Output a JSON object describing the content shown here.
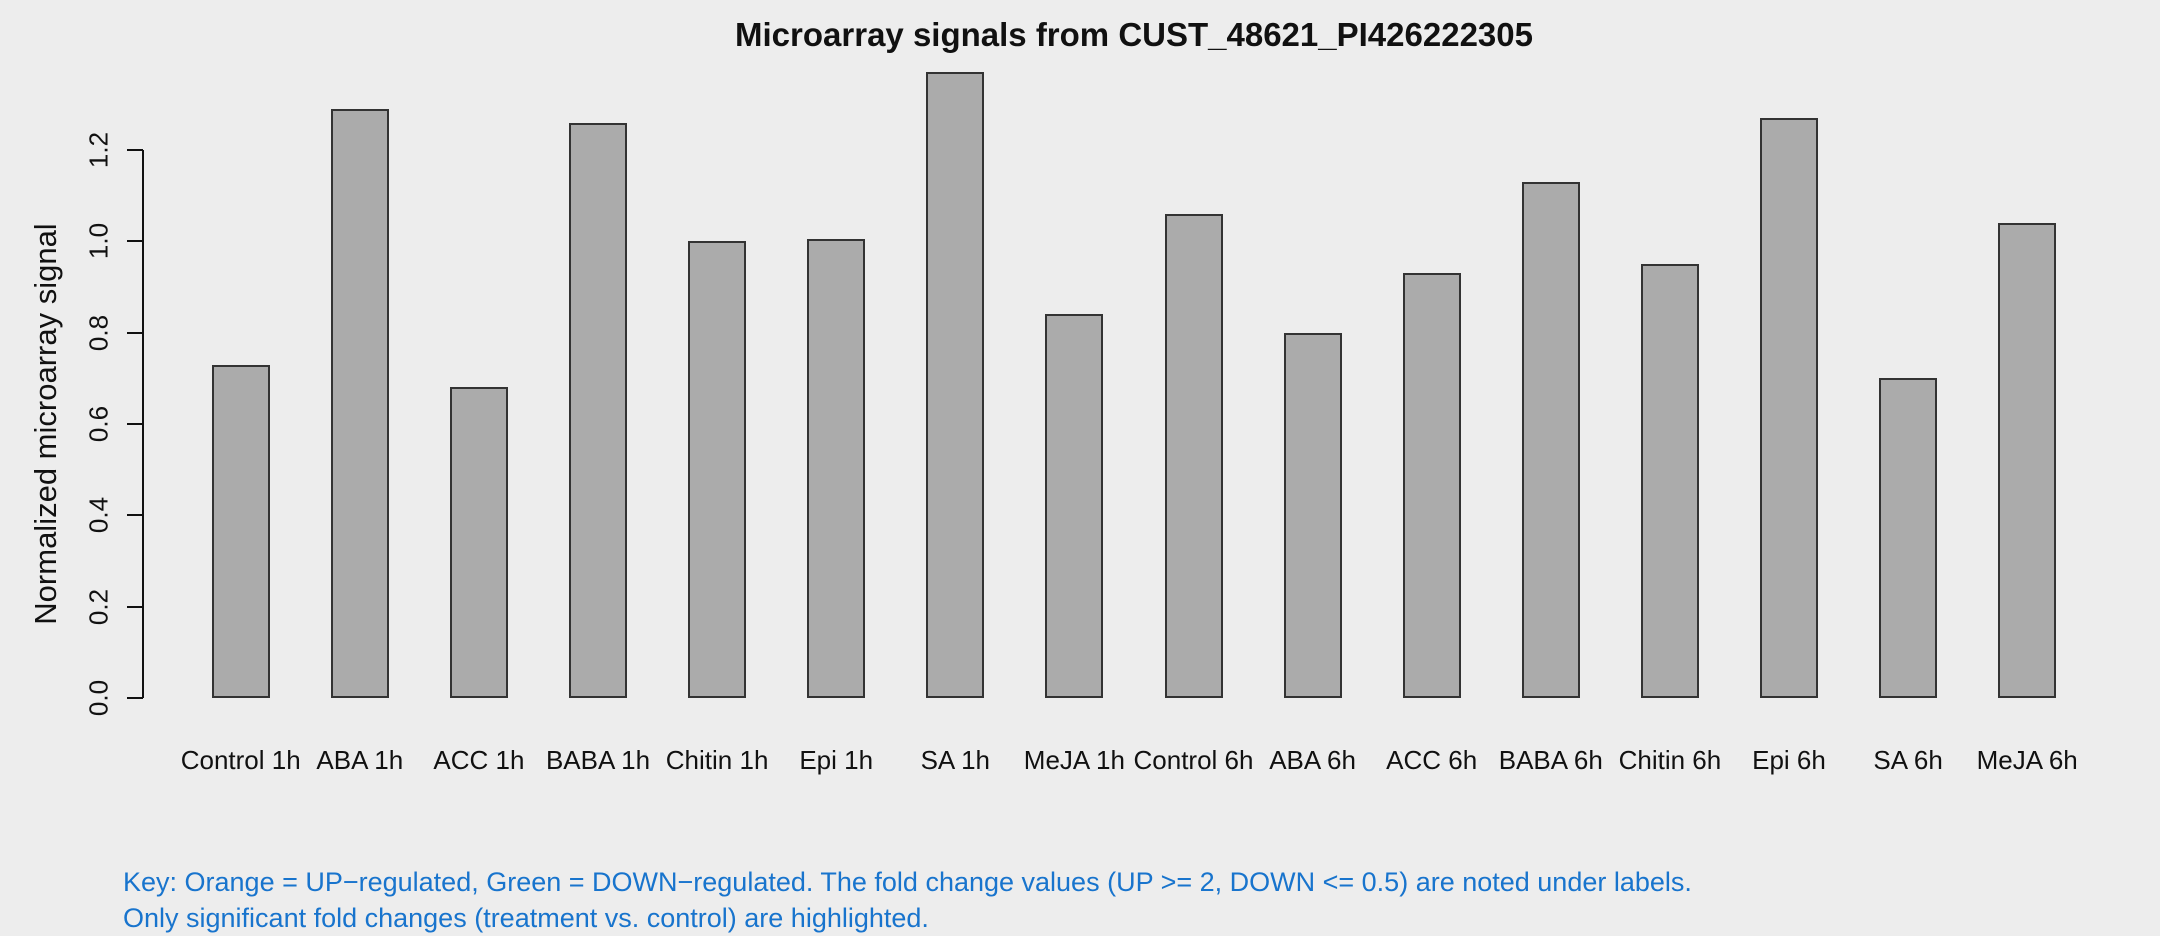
{
  "window": {
    "background_color": "#EDEDED",
    "text_color": "#111111"
  },
  "chart_data": {
    "type": "bar",
    "title": "Microarray signals from CUST_48621_PI426222305",
    "xlabel": "",
    "ylabel": "Normalized microarray signal",
    "categories": [
      "Control 1h",
      "ABA 1h",
      "ACC 1h",
      "BABA 1h",
      "Chitin 1h",
      "Epi 1h",
      "SA 1h",
      "MeJA 1h",
      "Control 6h",
      "ABA 6h",
      "ACC 6h",
      "BABA 6h",
      "Chitin 6h",
      "Epi 6h",
      "SA 6h",
      "MeJA 6h"
    ],
    "values": [
      0.73,
      1.29,
      0.68,
      1.26,
      1.0,
      1.005,
      1.37,
      0.84,
      1.06,
      0.8,
      0.93,
      1.13,
      0.95,
      1.27,
      0.7,
      1.04
    ],
    "ylim": [
      0,
      1.2
    ],
    "yticks": [
      0.0,
      0.2,
      0.4,
      0.6,
      0.8,
      1.0,
      1.2
    ],
    "ytick_labels": [
      "0.0",
      "0.2",
      "0.4",
      "0.6",
      "0.8",
      "1.0",
      "1.2"
    ],
    "grid": false,
    "legend_position": "none",
    "bar_fill_color": "#ABABAB",
    "bar_border_color": "#333333"
  },
  "footer": {
    "key_line1": "Key: Orange = UP−regulated, Green = DOWN−regulated. The fold change values (UP >= 2, DOWN <= 0.5) are noted under labels.",
    "key_line2": "Only significant fold changes (treatment vs. control) are highlighted.",
    "key_color": "#1874CD"
  }
}
